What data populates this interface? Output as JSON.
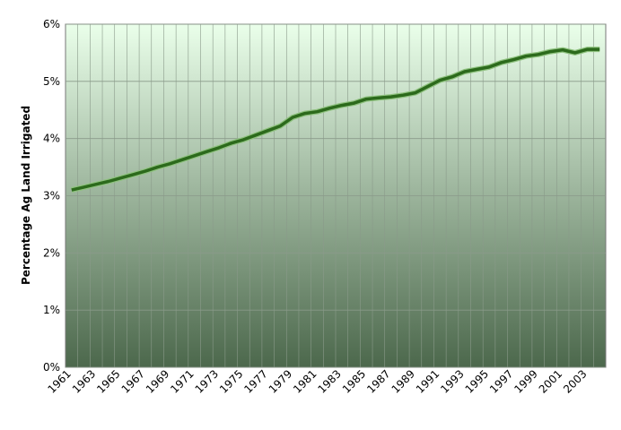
{
  "chart_data": {
    "type": "line",
    "y_label": "Percentage Ag Land Irrigated",
    "categories": [
      "1961",
      null,
      "1963",
      null,
      "1965",
      null,
      "1967",
      null,
      "1969",
      null,
      "1971",
      null,
      "1973",
      null,
      "1975",
      null,
      "1977",
      null,
      "1979",
      null,
      "1981",
      null,
      "1983",
      null,
      "1985",
      null,
      "1987",
      null,
      "1989",
      null,
      "1991",
      null,
      "1993",
      null,
      "1995",
      null,
      "1997",
      null,
      "1999",
      null,
      "2001",
      null,
      "2003",
      null
    ],
    "values": [
      3.1,
      3.15,
      3.2,
      3.25,
      3.31,
      3.37,
      3.43,
      3.5,
      3.56,
      3.63,
      3.7,
      3.77,
      3.84,
      3.92,
      3.98,
      4.06,
      4.14,
      4.22,
      4.37,
      4.44,
      4.47,
      4.53,
      4.58,
      4.62,
      4.69,
      4.71,
      4.73,
      4.76,
      4.8,
      4.91,
      5.02,
      5.08,
      5.17,
      5.21,
      5.25,
      5.33,
      5.38,
      5.44,
      5.47,
      5.52,
      5.55,
      5.5,
      5.56,
      5.56
    ],
    "color": "#2c6a1c",
    "ylim": [
      0,
      6
    ],
    "yticks": [
      {
        "value": 0,
        "label": "0%"
      },
      {
        "value": 1,
        "label": "1%"
      },
      {
        "value": 2,
        "label": "2%"
      },
      {
        "value": 3,
        "label": "3%"
      },
      {
        "value": 4,
        "label": "4%"
      },
      {
        "value": 5,
        "label": "5%"
      },
      {
        "value": 6,
        "label": "6%"
      }
    ],
    "grid": true
  }
}
